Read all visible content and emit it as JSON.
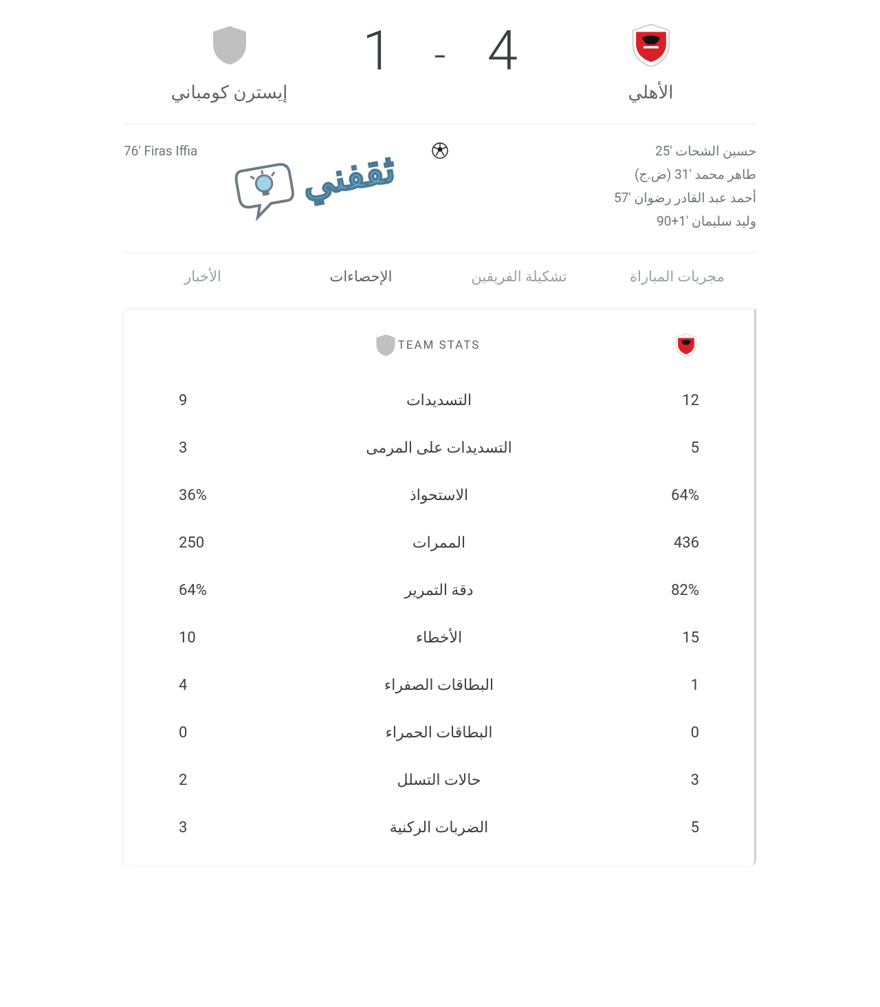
{
  "colors": {
    "text_primary": "#3c4043",
    "text_secondary": "#70757a",
    "text_muted": "#9aa0a6",
    "divider": "#ebebeb",
    "generic_shield": "#c0c0c0",
    "alahly_red": "#d92027",
    "watermark": "#6aa8c9"
  },
  "match": {
    "home": {
      "name": "الأهلي",
      "score": "4"
    },
    "away": {
      "name": "إيسترن كومباني",
      "score": "1"
    },
    "dash": "-"
  },
  "scorers": {
    "home": [
      "حسين الشحات '25",
      "طاهر محمد '31 (ض.ج)",
      "أحمد عبد القادر رضوان '57",
      "وليد سليمان '1+90"
    ],
    "away": [
      "76' Firas Iffia"
    ],
    "icon_label": "⚽"
  },
  "watermark_text": "ثقفني",
  "tabs": {
    "items": [
      "مجريات المباراة",
      "تشكيلة الفريقين",
      "الإحصاءات",
      "الأخبار"
    ],
    "active_index": 2
  },
  "stats": {
    "title": "TEAM STATS",
    "rows": [
      {
        "label": "التسديدات",
        "home": "12",
        "away": "9"
      },
      {
        "label": "التسديدات على المرمى",
        "home": "5",
        "away": "3"
      },
      {
        "label": "الاستحواذ",
        "home": "64%",
        "away": "36%"
      },
      {
        "label": "الممرات",
        "home": "436",
        "away": "250"
      },
      {
        "label": "دقة التمرير",
        "home": "82%",
        "away": "64%"
      },
      {
        "label": "الأخطاء",
        "home": "15",
        "away": "10"
      },
      {
        "label": "البطاقات الصفراء",
        "home": "1",
        "away": "4"
      },
      {
        "label": "البطاقات الحمراء",
        "home": "0",
        "away": "0"
      },
      {
        "label": "حالات التسلل",
        "home": "3",
        "away": "2"
      },
      {
        "label": "الضربات الركنية",
        "home": "5",
        "away": "3"
      }
    ]
  }
}
